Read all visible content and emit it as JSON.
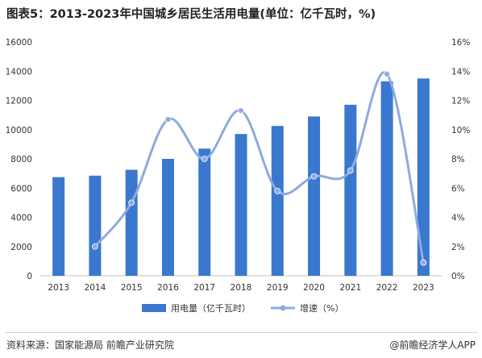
{
  "title": "图表5：2013-2023年中国城乡居民生活用电量(单位：亿千瓦时，%)",
  "source": "资料来源：国家能源局 前瞻产业研究院",
  "brand": "@前瞻经济学人APP",
  "colors": {
    "bar": "#3a78cf",
    "line": "#8eaadf",
    "axis": "#bfbfbf"
  },
  "chart_data": {
    "type": "bar",
    "categories": [
      "2013",
      "2014",
      "2015",
      "2016",
      "2017",
      "2018",
      "2019",
      "2020",
      "2021",
      "2022",
      "2023"
    ],
    "series": [
      {
        "name": "用电量（亿千瓦时）",
        "type": "bar",
        "axis": "left",
        "values": [
          6750,
          6850,
          7250,
          8000,
          8700,
          9700,
          10250,
          10900,
          11700,
          13300,
          13500
        ]
      },
      {
        "name": "增速（%）",
        "type": "line",
        "axis": "right",
        "values": [
          null,
          2.0,
          5.0,
          10.7,
          8.0,
          11.3,
          5.8,
          6.8,
          7.2,
          13.8,
          0.9
        ]
      }
    ],
    "y_left": {
      "lim": [
        0,
        16000
      ],
      "ticks": [
        "0",
        "2000",
        "4000",
        "6000",
        "8000",
        "10000",
        "12000",
        "14000",
        "16000"
      ]
    },
    "y_right": {
      "lim": [
        0,
        16
      ],
      "ticks": [
        "0%",
        "2%",
        "4%",
        "6%",
        "8%",
        "10%",
        "12%",
        "14%",
        "16%"
      ]
    },
    "legend_position": "bottom",
    "grid": false
  }
}
